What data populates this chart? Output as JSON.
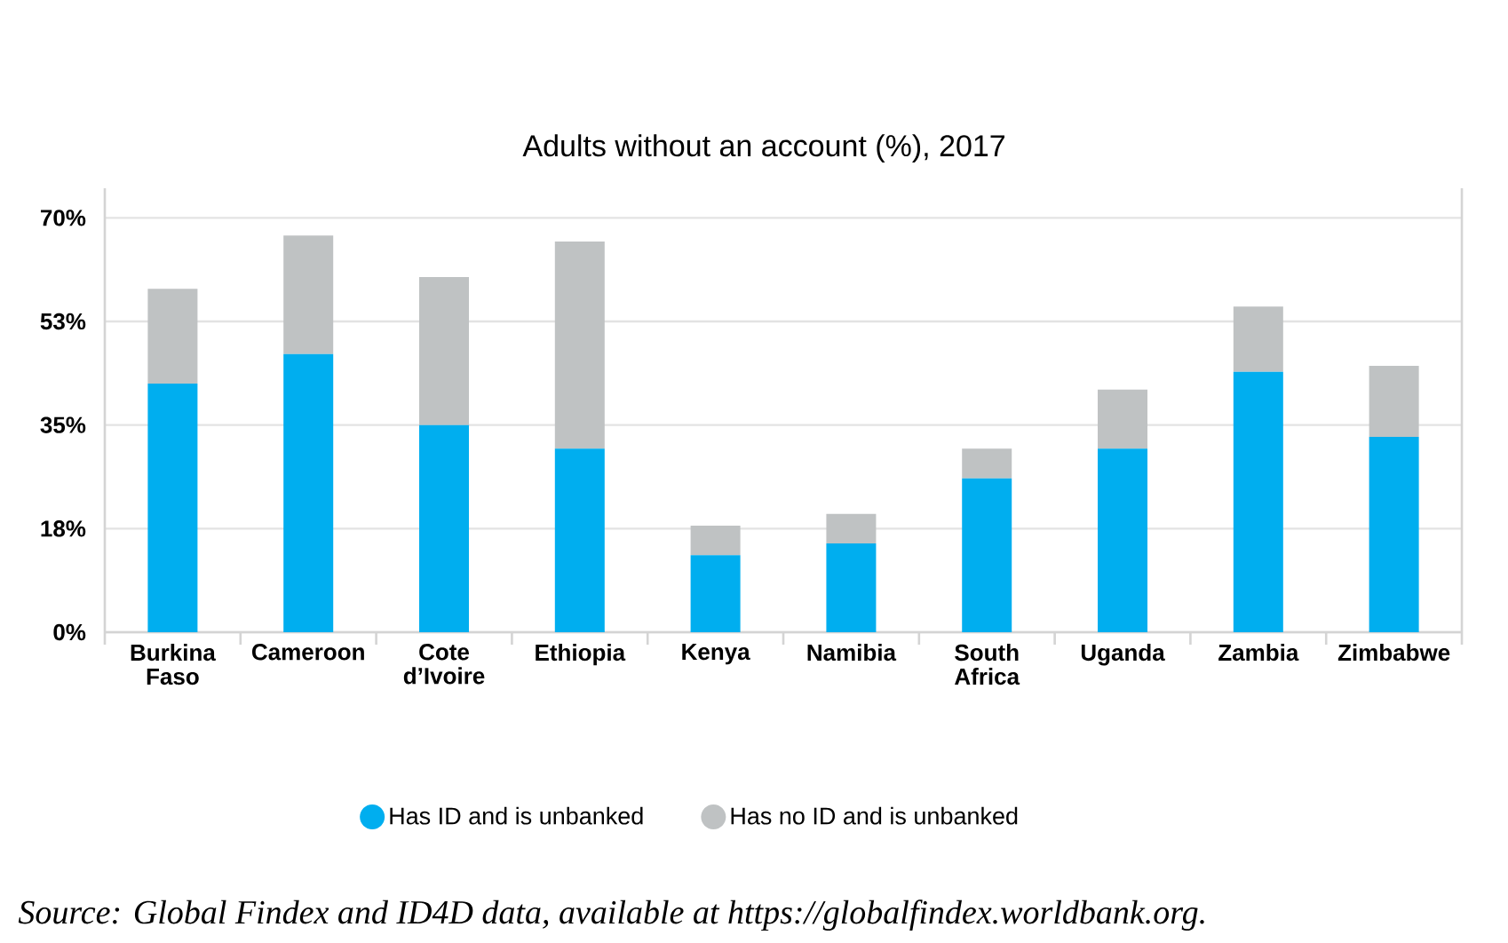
{
  "chart_data": {
    "type": "bar",
    "title": "Adults without an account (%), 2017",
    "categories": [
      "Burkina Faso",
      "Cameroon",
      "Cote d’Ivoire",
      "Ethiopia",
      "Kenya",
      "Namibia",
      "South Africa",
      "Uganda",
      "Zambia",
      "Zimbabwe"
    ],
    "stacked": true,
    "series": [
      {
        "name": "Has ID and is unbanked",
        "color": "#00aeef",
        "values": [
          42,
          47,
          35,
          31,
          13,
          15,
          26,
          31,
          44,
          33
        ]
      },
      {
        "name": "Has no ID and is unbanked",
        "color": "#bfc2c3",
        "values": [
          16,
          20,
          25,
          35,
          5,
          5,
          5,
          10,
          11,
          12
        ]
      }
    ],
    "ylim": [
      0,
      75
    ],
    "yticks": [
      {
        "value": 0,
        "label": "0%"
      },
      {
        "value": 17.5,
        "label": "18%"
      },
      {
        "value": 35,
        "label": "35%"
      },
      {
        "value": 52.5,
        "label": "53%"
      },
      {
        "value": 70,
        "label": "70%"
      }
    ],
    "grid": "y",
    "legend": "bottom",
    "annotations": [
      "Source: Global Findex and ID4D data, available at https://globalfindex.worldbank.org."
    ]
  }
}
